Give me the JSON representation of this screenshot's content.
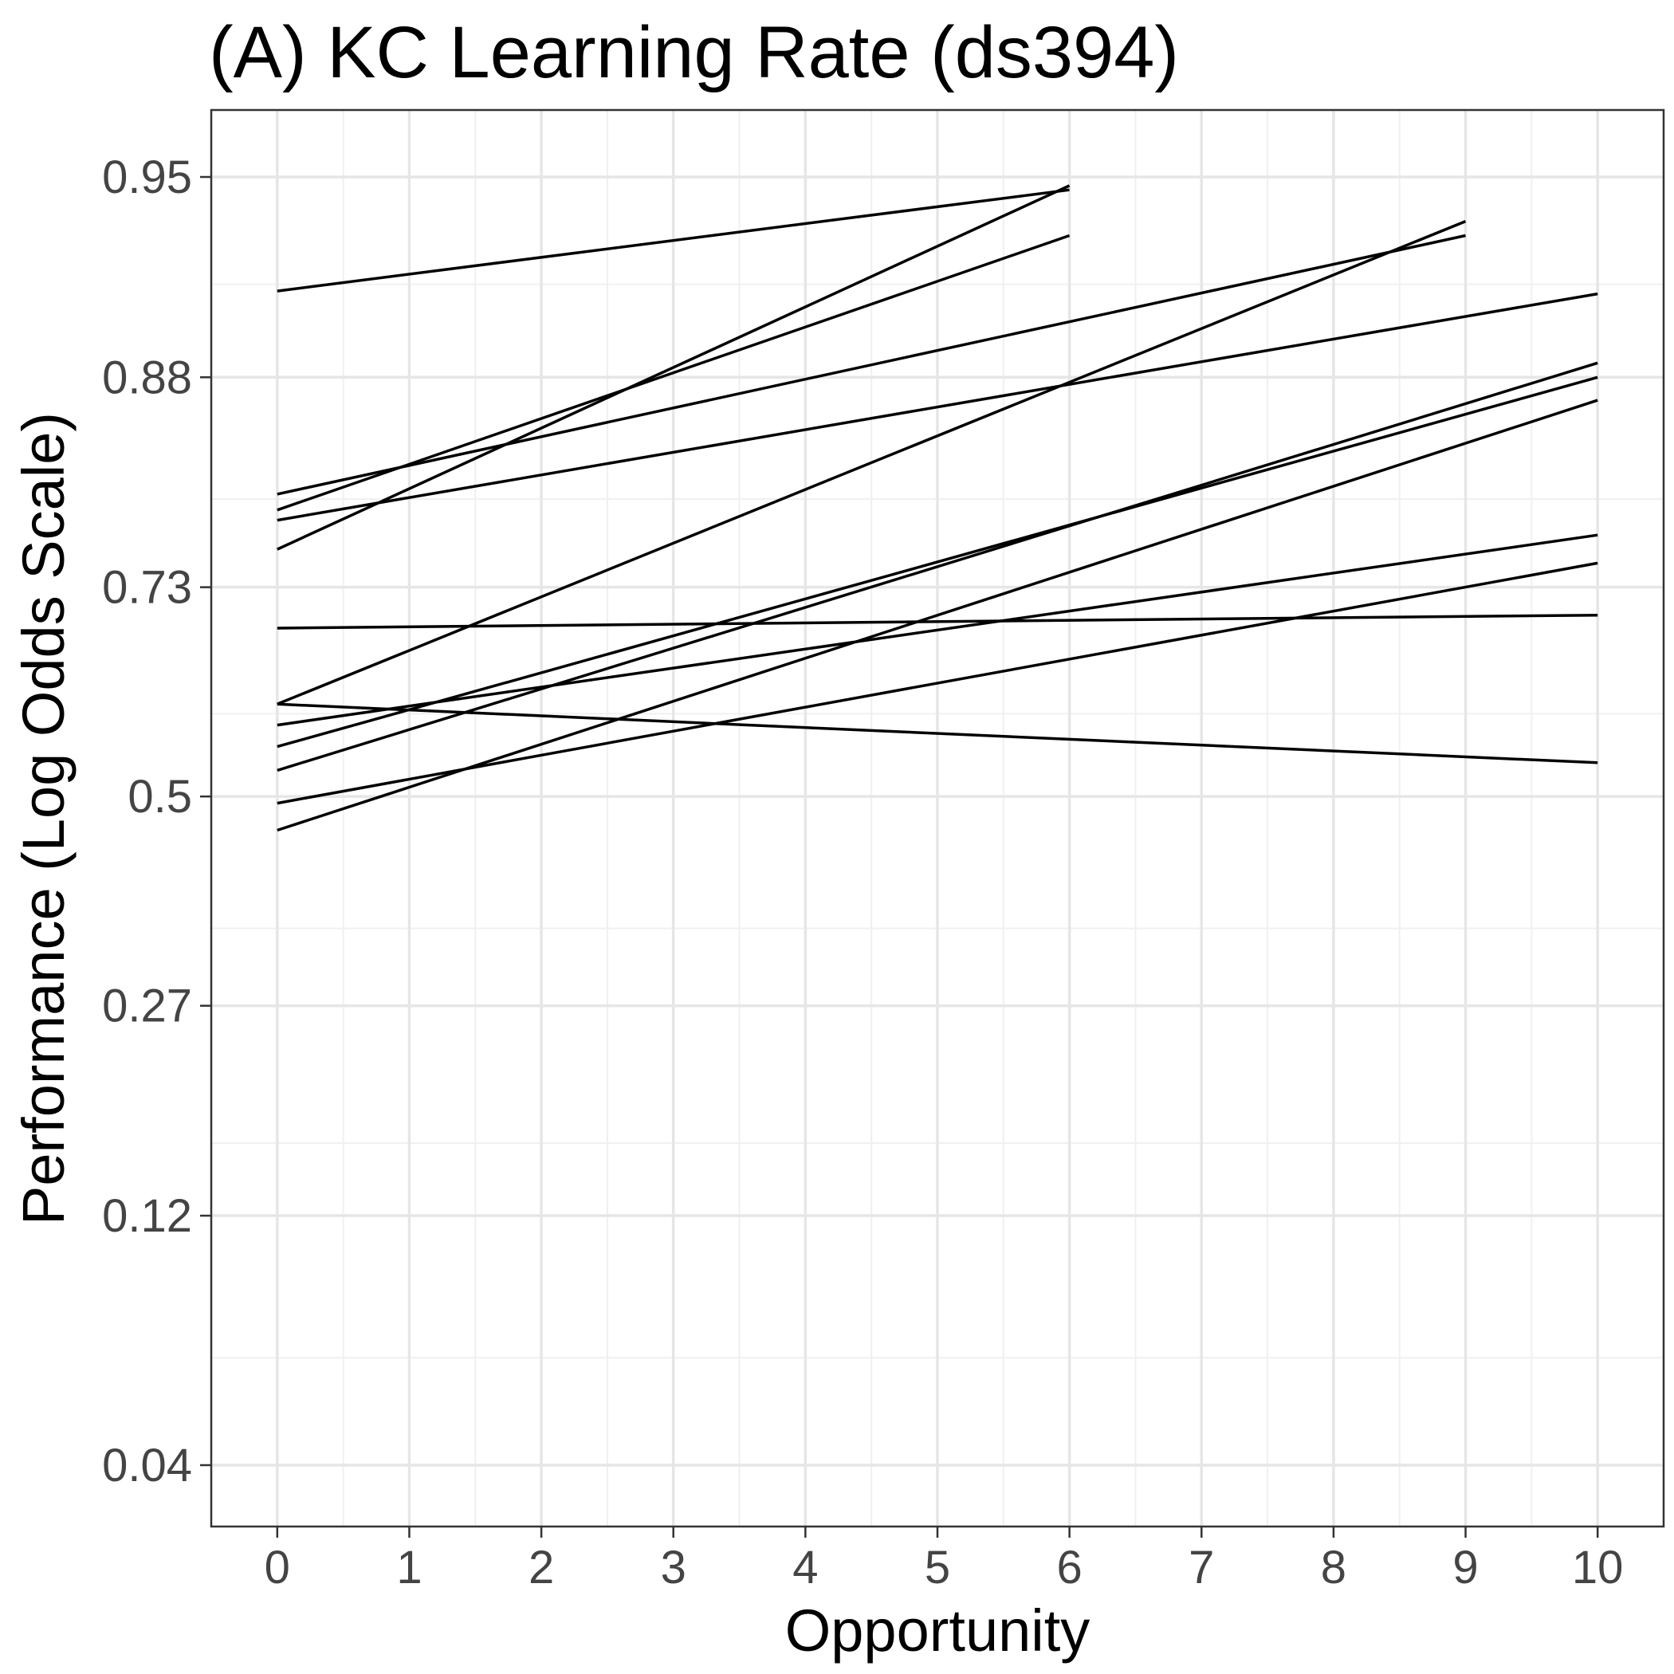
{
  "chart_data": {
    "type": "line",
    "title": "(A) KC Learning Rate (ds394)",
    "xlabel": "Opportunity",
    "ylabel": "Performance (Log Odds Scale)",
    "xlim": [
      -0.5,
      10.5
    ],
    "ylim": [
      0.0,
      0.99
    ],
    "y_scale": "logit",
    "x_ticks": [
      0,
      1,
      2,
      3,
      4,
      5,
      6,
      7,
      8,
      9,
      10
    ],
    "x_tick_labels": [
      "0",
      "1",
      "2",
      "3",
      "4",
      "5",
      "6",
      "7",
      "8",
      "9",
      "10"
    ],
    "y_ticks": [
      0.04,
      0.12,
      0.27,
      0.5,
      0.73,
      0.88,
      0.95
    ],
    "y_tick_labels": [
      "0.04",
      "0.12",
      "0.27",
      "0.5",
      "0.73",
      "0.88",
      "0.95"
    ],
    "grid": true,
    "legend": "none",
    "line_color": "#000000",
    "series": [
      {
        "x": [
          0,
          6
        ],
        "y": [
          0.917,
          0.947
        ]
      },
      {
        "x": [
          0,
          6
        ],
        "y": [
          0.764,
          0.948
        ]
      },
      {
        "x": [
          0,
          6
        ],
        "y": [
          0.796,
          0.935
        ]
      },
      {
        "x": [
          0,
          9
        ],
        "y": [
          0.608,
          0.939
        ]
      },
      {
        "x": [
          0,
          9
        ],
        "y": [
          0.808,
          0.935
        ]
      },
      {
        "x": [
          0,
          10
        ],
        "y": [
          0.788,
          0.916
        ]
      },
      {
        "x": [
          0,
          10
        ],
        "y": [
          0.69,
          0.703
        ]
      },
      {
        "x": [
          0,
          10
        ],
        "y": [
          0.608,
          0.54
        ]
      },
      {
        "x": [
          0,
          10
        ],
        "y": [
          0.584,
          0.776
        ]
      },
      {
        "x": [
          0,
          10
        ],
        "y": [
          0.559,
          0.88
        ]
      },
      {
        "x": [
          0,
          10
        ],
        "y": [
          0.531,
          0.887
        ]
      },
      {
        "x": [
          0,
          10
        ],
        "y": [
          0.492,
          0.752
        ]
      },
      {
        "x": [
          0,
          10
        ],
        "y": [
          0.46,
          0.868
        ]
      }
    ]
  }
}
